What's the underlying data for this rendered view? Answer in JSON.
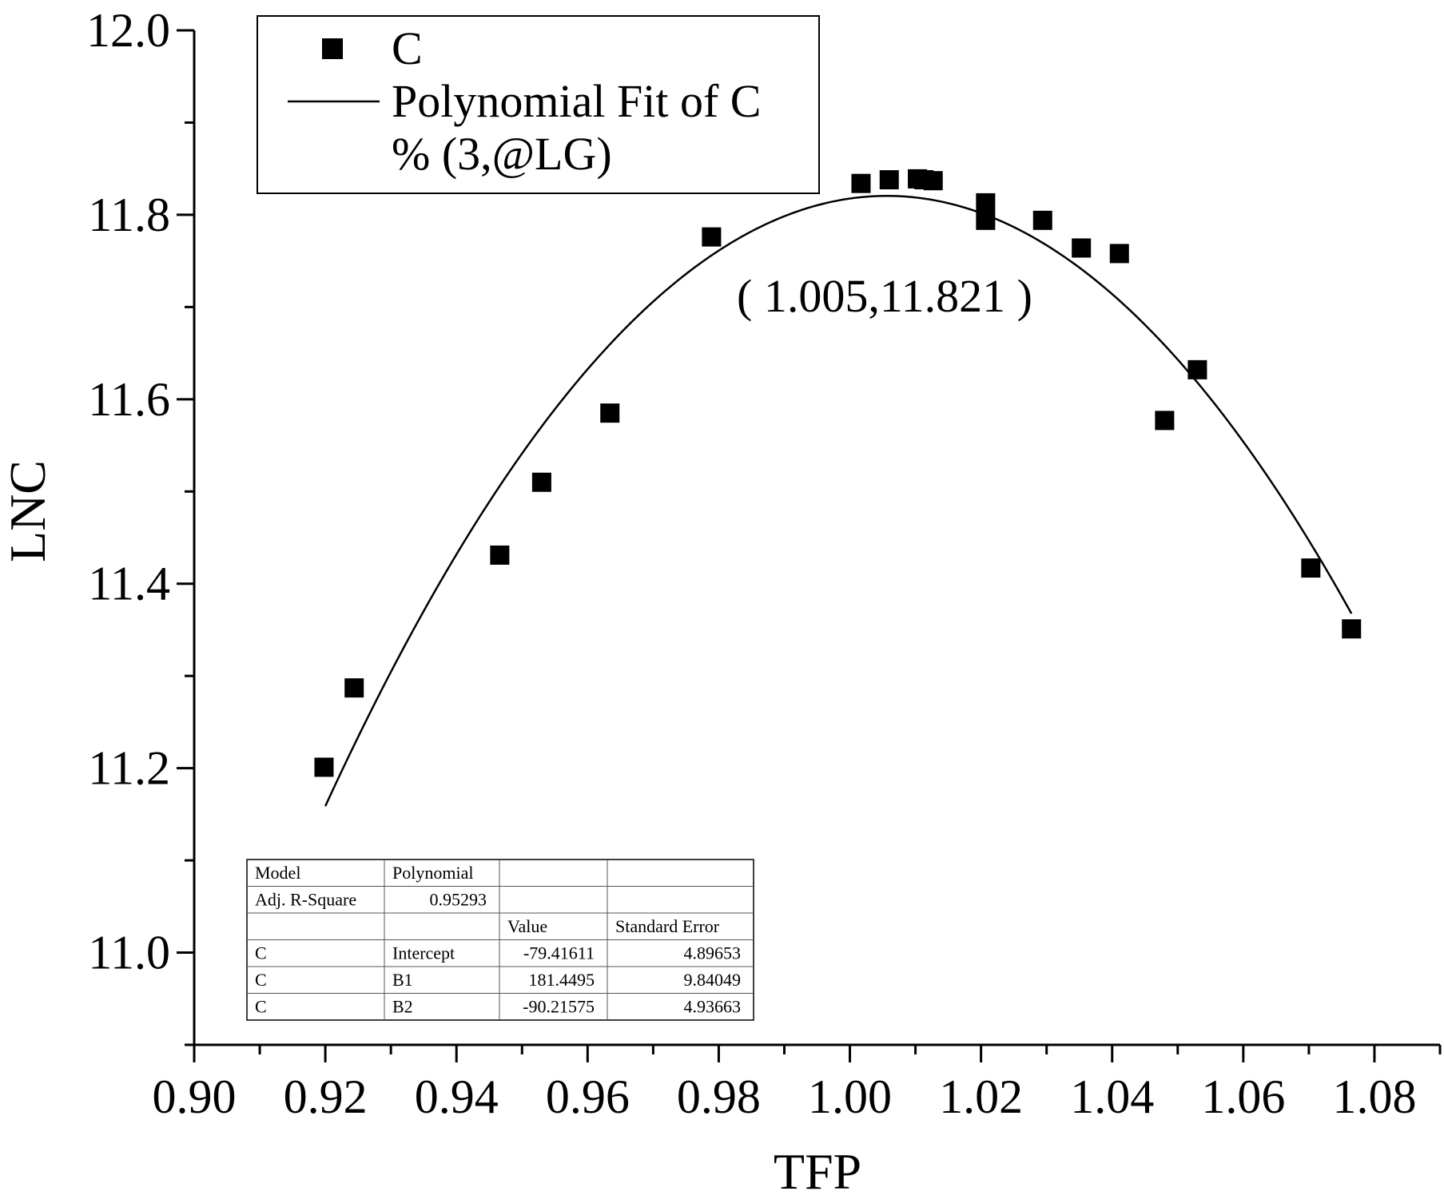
{
  "chart_data": {
    "type": "scatter",
    "xlabel": "TFP",
    "ylabel": "LNC",
    "xlim": [
      0.9,
      1.09
    ],
    "ylim": [
      10.9,
      12.0
    ],
    "x_ticks": [
      "0.90",
      "0.92",
      "0.94",
      "0.96",
      "0.98",
      "1.00",
      "1.02",
      "1.04",
      "1.06",
      "1.08"
    ],
    "y_ticks": [
      "11.0",
      "11.2",
      "11.4",
      "11.6",
      "11.8",
      "12.0"
    ],
    "legend_position": "top-left",
    "series": [
      {
        "name": "C",
        "kind": "scatter",
        "marker": "square",
        "points": [
          [
            0.9198,
            11.201
          ],
          [
            0.9244,
            11.287
          ],
          [
            0.9466,
            11.431
          ],
          [
            0.953,
            11.51
          ],
          [
            0.9634,
            11.585
          ],
          [
            0.9789,
            11.776
          ],
          [
            1.0017,
            11.834
          ],
          [
            1.006,
            11.838
          ],
          [
            1.0103,
            11.839
          ],
          [
            1.0113,
            11.838
          ],
          [
            1.0127,
            11.837
          ],
          [
            1.0207,
            11.813
          ],
          [
            1.0207,
            11.794
          ],
          [
            1.0294,
            11.794
          ],
          [
            1.0353,
            11.764
          ],
          [
            1.0411,
            11.758
          ],
          [
            1.048,
            11.577
          ],
          [
            1.053,
            11.632
          ],
          [
            1.0703,
            11.417
          ],
          [
            1.0765,
            11.351
          ]
        ]
      },
      {
        "name": "Polynomial Fit of C\n% (3,@LG)",
        "kind": "fit-line",
        "equation": "y = -79.41611 + 181.4495 x - 90.21575 x^2",
        "x_range": [
          0.92,
          1.0765
        ]
      }
    ],
    "legend": {
      "line1": "C",
      "line2": "Polynomial Fit of C",
      "line3": "% (3,@LG)"
    },
    "annotation": "( 1.005,11.821 )",
    "fit_table": {
      "rows": [
        [
          "Model",
          "Polynomial",
          "",
          ""
        ],
        [
          "Adj. R-Square",
          "0.95293",
          "",
          ""
        ],
        [
          "",
          "",
          "Value",
          "Standard Error"
        ],
        [
          "C",
          "Intercept",
          "-79.41611",
          "4.89653"
        ],
        [
          "C",
          "B1",
          "181.4495",
          "9.84049"
        ],
        [
          "C",
          "B2",
          "-90.21575",
          "4.93663"
        ]
      ],
      "coefficients": {
        "intercept": -79.41611,
        "b1": 181.4495,
        "b2": -90.21575
      }
    },
    "colors": {
      "marker": "#000000",
      "line": "#000000",
      "axis": "#000000"
    }
  }
}
